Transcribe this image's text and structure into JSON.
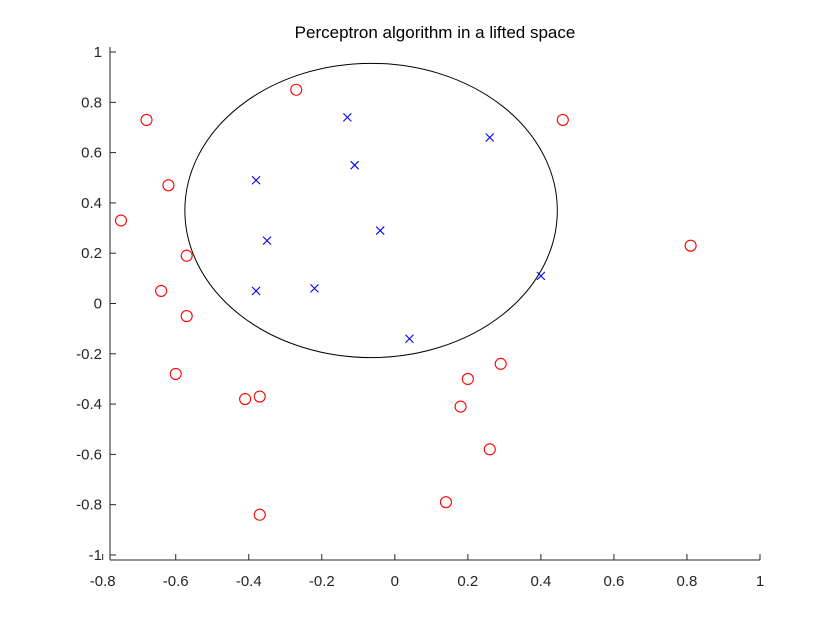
{
  "chart_data": {
    "type": "scatter",
    "title": "Perceptron algorithm in a lifted space",
    "xlabel": "",
    "ylabel": "",
    "xlim": [
      -0.78,
      1.0
    ],
    "ylim": [
      -1.02,
      1.02
    ],
    "xticks": [
      -0.8,
      -0.6,
      -0.4,
      -0.2,
      0,
      0.2,
      0.4,
      0.6,
      0.8,
      1
    ],
    "xtick_labels": [
      "-0.8",
      "-0.6",
      "-0.4",
      "-0.2",
      "0",
      "0.2",
      "0.4",
      "0.6",
      "0.8",
      "1"
    ],
    "yticks": [
      -1,
      -0.8,
      -0.6,
      -0.4,
      -0.2,
      0,
      0.2,
      0.4,
      0.6,
      0.8,
      1
    ],
    "ytick_labels": [
      "-1",
      "-0.8",
      "-0.6",
      "-0.4",
      "-0.2",
      "0",
      "0.2",
      "0.4",
      "0.6",
      "0.8",
      "1"
    ],
    "grid": false,
    "colors": {
      "positive_marker": "#ff0000",
      "negative_marker": "#0000ff",
      "boundary": "#000000",
      "axis": "#262626"
    },
    "series": [
      {
        "marker": "o",
        "color": "#ff0000",
        "points": [
          [
            -0.27,
            0.85
          ],
          [
            -0.68,
            0.73
          ],
          [
            0.46,
            0.73
          ],
          [
            -0.62,
            0.47
          ],
          [
            -0.75,
            0.33
          ],
          [
            -0.57,
            0.19
          ],
          [
            -0.64,
            0.05
          ],
          [
            -0.57,
            -0.05
          ],
          [
            -0.6,
            -0.28
          ],
          [
            -0.41,
            -0.38
          ],
          [
            -0.37,
            -0.37
          ],
          [
            -0.37,
            -0.84
          ],
          [
            0.81,
            0.23
          ],
          [
            0.29,
            -0.24
          ],
          [
            0.2,
            -0.3
          ],
          [
            0.18,
            -0.41
          ],
          [
            0.26,
            -0.58
          ],
          [
            0.14,
            -0.79
          ]
        ]
      },
      {
        "marker": "x",
        "color": "#0000ff",
        "points": [
          [
            -0.13,
            0.74
          ],
          [
            0.26,
            0.66
          ],
          [
            -0.11,
            0.55
          ],
          [
            -0.38,
            0.49
          ],
          [
            -0.04,
            0.29
          ],
          [
            -0.35,
            0.25
          ],
          [
            0.4,
            0.11
          ],
          [
            -0.22,
            0.06
          ],
          [
            -0.38,
            0.05
          ],
          [
            0.04,
            -0.14
          ]
        ]
      }
    ],
    "decision_boundary": {
      "type": "ellipse",
      "center": [
        -0.065,
        0.37
      ],
      "radius_x": 0.51,
      "radius_y": 0.585
    }
  }
}
